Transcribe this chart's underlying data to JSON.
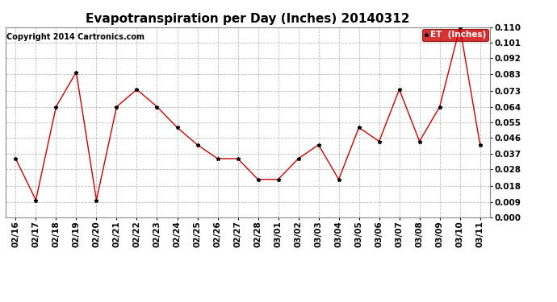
{
  "title": "Evapotranspiration per Day (Inches) 20140312",
  "copyright": "Copyright 2014 Cartronics.com",
  "legend_label": "ET  (Inches)",
  "dates": [
    "02/16",
    "02/17",
    "02/18",
    "02/19",
    "02/20",
    "02/21",
    "02/22",
    "02/23",
    "02/24",
    "02/25",
    "02/26",
    "02/27",
    "02/28",
    "03/01",
    "03/02",
    "03/03",
    "03/04",
    "03/05",
    "03/06",
    "03/07",
    "03/08",
    "03/09",
    "03/10",
    "03/11"
  ],
  "values": [
    0.034,
    0.01,
    0.064,
    0.084,
    0.01,
    0.064,
    0.074,
    0.064,
    0.052,
    0.042,
    0.034,
    0.034,
    0.022,
    0.022,
    0.034,
    0.042,
    0.022,
    0.052,
    0.044,
    0.074,
    0.044,
    0.064,
    0.11,
    0.042
  ],
  "line_color": "#cc0000",
  "marker": "*",
  "marker_color": "#000000",
  "background_color": "#ffffff",
  "grid_color": "#bbbbbb",
  "ylim": [
    0.0,
    0.11
  ],
  "yticks": [
    0.0,
    0.009,
    0.018,
    0.028,
    0.037,
    0.046,
    0.055,
    0.064,
    0.073,
    0.083,
    0.092,
    0.101,
    0.11
  ],
  "legend_bg": "#cc0000",
  "legend_text_color": "#ffffff",
  "title_fontsize": 11,
  "tick_fontsize": 7.5,
  "copyright_fontsize": 7,
  "ylabel_fontsize": 8
}
